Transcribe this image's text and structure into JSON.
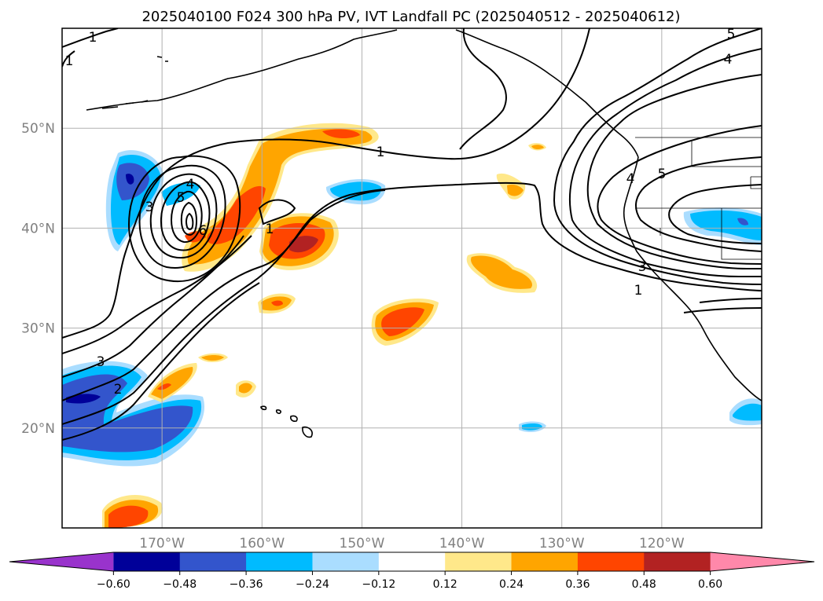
{
  "chart_data": {
    "type": "contour map",
    "title": "2025040100 F024 300 hPa PV, IVT Landfall PC (2025040512 - 2025040612)",
    "lon_range": [
      -180,
      -110
    ],
    "lat_range": [
      10,
      60
    ],
    "lon_ticks": [
      -170,
      -160,
      -150,
      -140,
      -130,
      -120
    ],
    "lon_tick_labels": [
      "170°W",
      "160°W",
      "150°W",
      "140°W",
      "130°W",
      "120°W"
    ],
    "lat_ticks": [
      20,
      30,
      40,
      50
    ],
    "lat_tick_labels": [
      "20°N",
      "30°N",
      "40°N",
      "50°N"
    ],
    "grid": true,
    "pv_contour_labels": [
      "1",
      "1",
      "1",
      "1",
      "1",
      "2",
      "3",
      "3",
      "3",
      "4",
      "4",
      "4",
      "5",
      "5",
      "5",
      "6"
    ],
    "colorbar": {
      "orientation": "horizontal",
      "extend": "both",
      "boundaries": [
        -0.6,
        -0.48,
        -0.36,
        -0.24,
        -0.12,
        0.12,
        0.24,
        0.36,
        0.48,
        0.6
      ],
      "tick_labels": [
        "−0.60",
        "−0.48",
        "−0.36",
        "−0.24",
        "−0.12",
        "0.12",
        "0.24",
        "0.36",
        "0.48",
        "0.60"
      ],
      "under_color": "#9933cc",
      "over_color": "#ff88aa",
      "colors": [
        "#000099",
        "#3355cc",
        "#00bbff",
        "#aaddff",
        "#ffffff",
        "#ffe88a",
        "#ffa500",
        "#ff4500",
        "#b22222"
      ]
    },
    "fill_colors": {
      "neg_strong": "#000099",
      "neg_mid": "#3355cc",
      "neg_weak": "#00bbff",
      "neg_faint": "#aaddff",
      "pos_faint": "#ffe88a",
      "pos_weak": "#ffa500",
      "pos_mid": "#ff4500",
      "pos_strong": "#b22222"
    }
  }
}
